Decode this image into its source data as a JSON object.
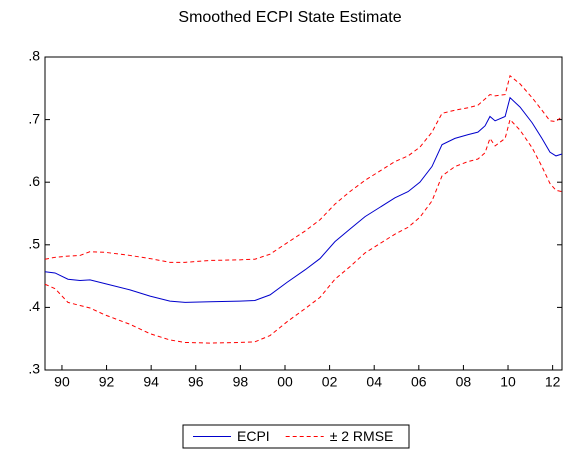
{
  "chart_data": {
    "type": "line",
    "title": "Smoothed ECPI State Estimate",
    "x": [
      1989.24,
      1989.69,
      1990.27,
      1990.81,
      1991.26,
      1991.93,
      1993.05,
      1993.95,
      1994.84,
      1995.52,
      1996.64,
      1997.98,
      1998.65,
      1999.33,
      2000.09,
      2000.9,
      2001.57,
      2002.24,
      2002.91,
      2003.59,
      2004.26,
      2004.93,
      2005.52,
      2006.05,
      2006.59,
      2007.04,
      2007.62,
      2008.21,
      2008.65,
      2008.97,
      2009.19,
      2009.42,
      2009.87,
      2010.09,
      2010.54,
      2011.08,
      2011.52,
      2011.88,
      2012.15,
      2012.42
    ],
    "series": [
      {
        "name": "ECPI",
        "color": "#0000cc",
        "dash": false,
        "values": [
          0.457,
          0.455,
          0.445,
          0.443,
          0.444,
          0.438,
          0.428,
          0.418,
          0.41,
          0.408,
          0.409,
          0.41,
          0.411,
          0.42,
          0.44,
          0.46,
          0.478,
          0.505,
          0.525,
          0.545,
          0.56,
          0.575,
          0.585,
          0.6,
          0.625,
          0.66,
          0.67,
          0.676,
          0.68,
          0.69,
          0.705,
          0.698,
          0.705,
          0.735,
          0.72,
          0.695,
          0.67,
          0.648,
          0.642,
          0.645
        ]
      },
      {
        "name": "± 2 RMSE",
        "color": "#ff0000",
        "dash": true,
        "upper": [
          0.477,
          0.48,
          0.482,
          0.483,
          0.489,
          0.488,
          0.483,
          0.478,
          0.472,
          0.472,
          0.475,
          0.476,
          0.477,
          0.485,
          0.503,
          0.522,
          0.54,
          0.565,
          0.585,
          0.603,
          0.618,
          0.633,
          0.642,
          0.656,
          0.68,
          0.71,
          0.715,
          0.719,
          0.723,
          0.733,
          0.74,
          0.738,
          0.74,
          0.77,
          0.757,
          0.735,
          0.715,
          0.698,
          0.697,
          0.705
        ],
        "lower": [
          0.437,
          0.43,
          0.408,
          0.403,
          0.399,
          0.388,
          0.373,
          0.358,
          0.348,
          0.344,
          0.343,
          0.344,
          0.345,
          0.355,
          0.377,
          0.398,
          0.416,
          0.445,
          0.465,
          0.487,
          0.502,
          0.517,
          0.528,
          0.544,
          0.57,
          0.61,
          0.625,
          0.633,
          0.637,
          0.647,
          0.67,
          0.658,
          0.67,
          0.7,
          0.683,
          0.655,
          0.625,
          0.598,
          0.587,
          0.585
        ]
      }
    ],
    "xlim": [
      1989.24,
      2012.42
    ],
    "xticks": [
      {
        "value": 1990,
        "label": "90"
      },
      {
        "value": 1992,
        "label": "92"
      },
      {
        "value": 1994,
        "label": "94"
      },
      {
        "value": 1996,
        "label": "96"
      },
      {
        "value": 1998,
        "label": "98"
      },
      {
        "value": 2000,
        "label": "00"
      },
      {
        "value": 2002,
        "label": "02"
      },
      {
        "value": 2004,
        "label": "04"
      },
      {
        "value": 2006,
        "label": "06"
      },
      {
        "value": 2008,
        "label": "08"
      },
      {
        "value": 2010,
        "label": "10"
      },
      {
        "value": 2012,
        "label": "12"
      }
    ],
    "ylim": [
      0.3,
      0.8
    ],
    "yticks": [
      {
        "value": 0.3,
        "label": ".3"
      },
      {
        "value": 0.4,
        "label": ".4"
      },
      {
        "value": 0.5,
        "label": ".5"
      },
      {
        "value": 0.6,
        "label": ".6"
      },
      {
        "value": 0.7,
        "label": ".7"
      },
      {
        "value": 0.8,
        "label": ".8"
      }
    ],
    "grid": false,
    "legend": "bottom"
  }
}
